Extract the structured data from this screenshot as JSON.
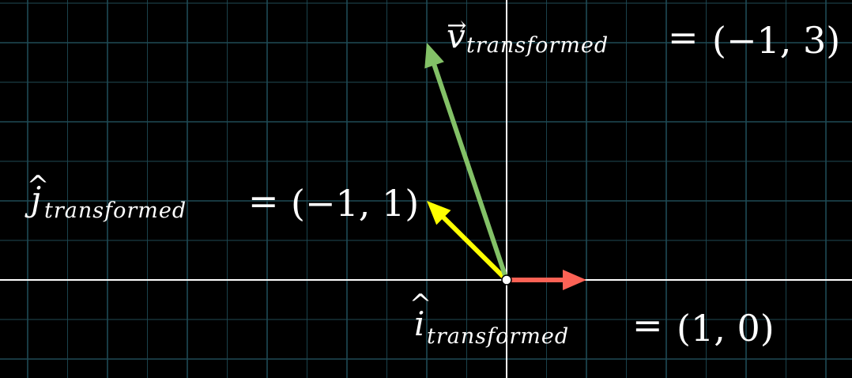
{
  "colors": {
    "background": "#000000",
    "grid": "#1f4a55",
    "axis": "#ffffff",
    "i_hat": "#fc6255",
    "j_hat": "#ffff00",
    "v": "#83c167",
    "text": "#ffffff"
  },
  "vectors": [
    {
      "id": "i-hat",
      "x": 1,
      "y": 0,
      "hat": "^",
      "base": "i",
      "subscript": "transformed",
      "equals": "=",
      "value": "(1, 0)"
    },
    {
      "id": "j-hat",
      "x": -1,
      "y": 1,
      "hat": "^",
      "base": "j",
      "subscript": "transformed",
      "equals": "=",
      "value": "(−1, 1)"
    },
    {
      "id": "v",
      "x": -1,
      "y": 3,
      "hat": "→",
      "base": "v",
      "subscript": "transformed",
      "equals": "=",
      "value": "(−1, 3)"
    }
  ]
}
